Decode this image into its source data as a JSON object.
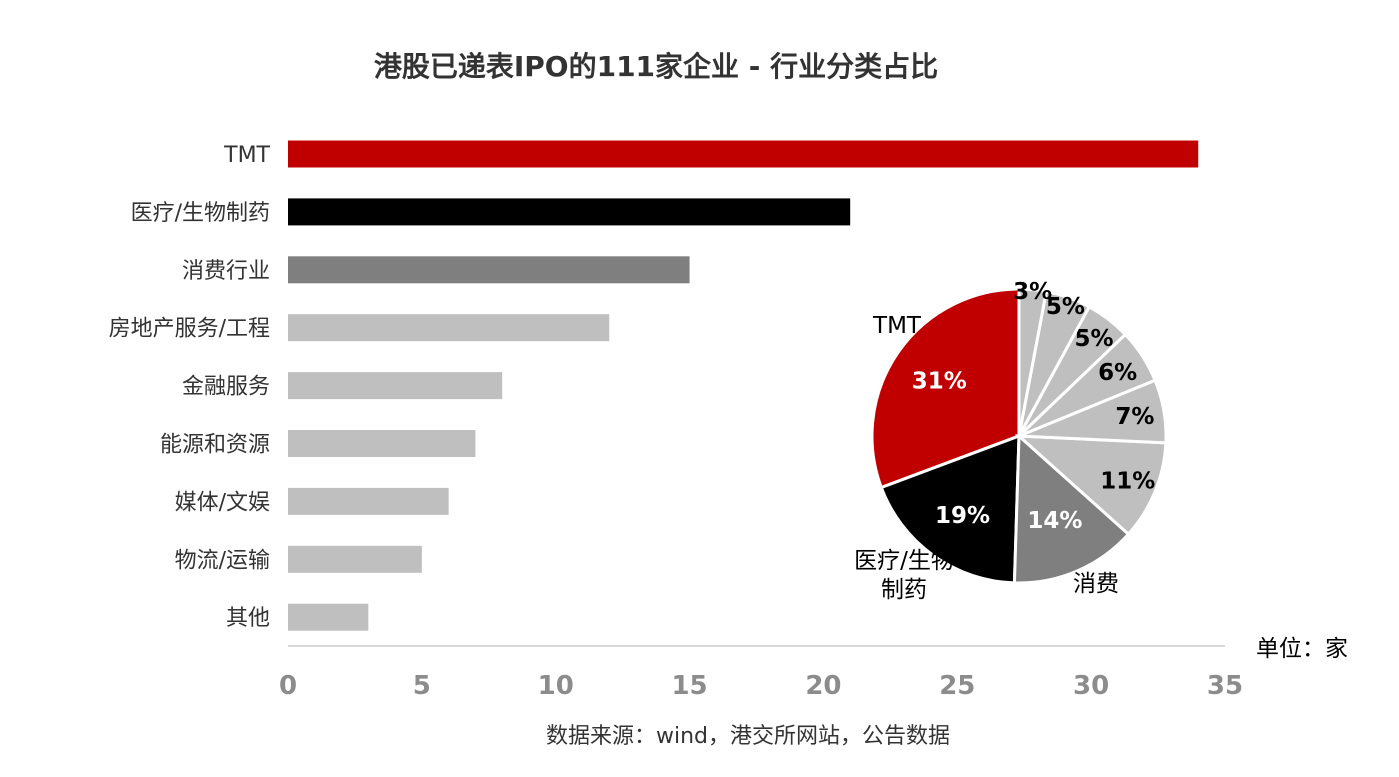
{
  "chart_data": [
    {
      "type": "bar",
      "orientation": "horizontal",
      "title": "港股已递表IPO的111家企业 - 行业分类占比",
      "categories": [
        "TMT",
        "医疗/生物制药",
        "消费行业",
        "房地产服务/工程",
        "金融服务",
        "能源和资源",
        "媒体/文娱",
        "物流/运输",
        "其他"
      ],
      "values": [
        34,
        21,
        15,
        12,
        8,
        7,
        6,
        5,
        3
      ],
      "colors": [
        "#c00000",
        "#000000",
        "#7f7f7f",
        "#bfbfbf",
        "#bfbfbf",
        "#bfbfbf",
        "#bfbfbf",
        "#bfbfbf",
        "#bfbfbf"
      ],
      "xlim": [
        0,
        35
      ],
      "xticks": [
        "0",
        "5",
        "10",
        "15",
        "20",
        "25",
        "30",
        "35"
      ],
      "unit": "单位：家",
      "grid": false
    },
    {
      "type": "pie",
      "slices": [
        {
          "name": "TMT",
          "label": "31%",
          "value": 31,
          "color": "#c00000",
          "label_color": "#ffffff"
        },
        {
          "name": "医疗/生物\n制药",
          "label": "19%",
          "value": 19,
          "color": "#000000",
          "label_color": "#ffffff"
        },
        {
          "name": "消费",
          "label": "14%",
          "value": 14,
          "color": "#7f7f7f",
          "label_color": "#ffffff"
        },
        {
          "name": "",
          "label": "11%",
          "value": 11,
          "color": "#bfbfbf",
          "label_color": "#000000"
        },
        {
          "name": "",
          "label": "7%",
          "value": 7,
          "color": "#bfbfbf",
          "label_color": "#000000"
        },
        {
          "name": "",
          "label": "6%",
          "value": 6,
          "color": "#bfbfbf",
          "label_color": "#000000"
        },
        {
          "name": "",
          "label": "5%",
          "value": 5,
          "color": "#bfbfbf",
          "label_color": "#000000"
        },
        {
          "name": "",
          "label": "5%",
          "value": 5,
          "color": "#bfbfbf",
          "label_color": "#000000"
        },
        {
          "name": "",
          "label": "3%",
          "value": 3,
          "color": "#bfbfbf",
          "label_color": "#000000"
        }
      ]
    }
  ],
  "footer": {
    "unit": "单位：家",
    "source": "数据来源：wind，港交所网站，公告数据"
  }
}
